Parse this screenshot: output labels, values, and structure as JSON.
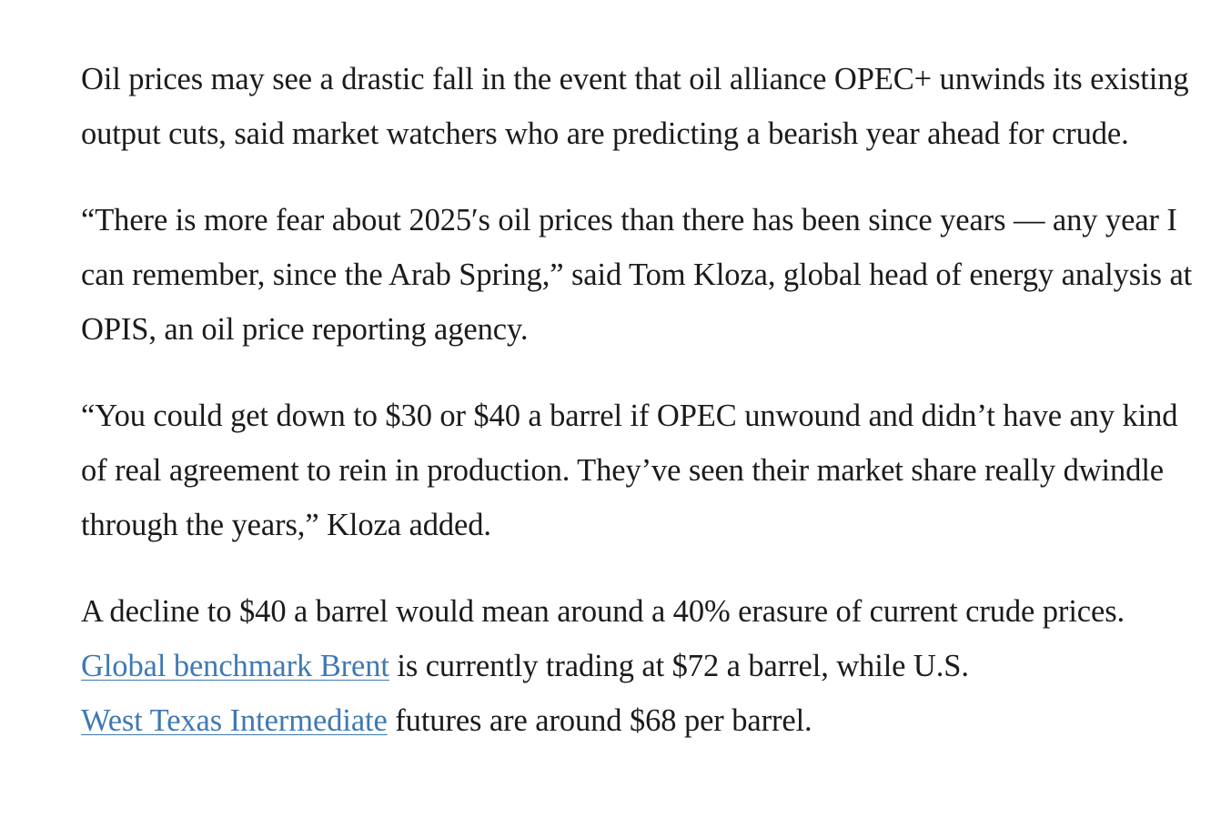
{
  "article": {
    "paragraph_1": "Oil prices may see a drastic fall in the event that oil alliance OPEC+ unwinds its existing output cuts, said market watchers who are predicting a bearish year ahead for crude.",
    "paragraph_2": "“There is more fear about 2025′s oil prices than there has been since years — any year I can remember, since the Arab Spring,” said Tom Kloza, global head of energy analysis at OPIS, an oil price reporting agency.",
    "paragraph_3": "“You could get down to $30 or $40 a barrel if OPEC unwound and didn’t have any kind of real agreement to rein in production. They’ve seen their market share really dwindle through the years,” Kloza added.",
    "paragraph_4": {
      "text_1": "A decline to $40 a barrel would mean around a 40% erasure of current crude prices. ",
      "link_1": "Global benchmark Brent",
      "text_2": " is currently trading at $72 a barrel, while U.S. ",
      "link_2": "West Texas Intermediate",
      "text_3": " futures are around $68 per barrel."
    }
  },
  "colors": {
    "text": "#1b1b1b",
    "link": "#3f79b4",
    "background": "#ffffff"
  }
}
